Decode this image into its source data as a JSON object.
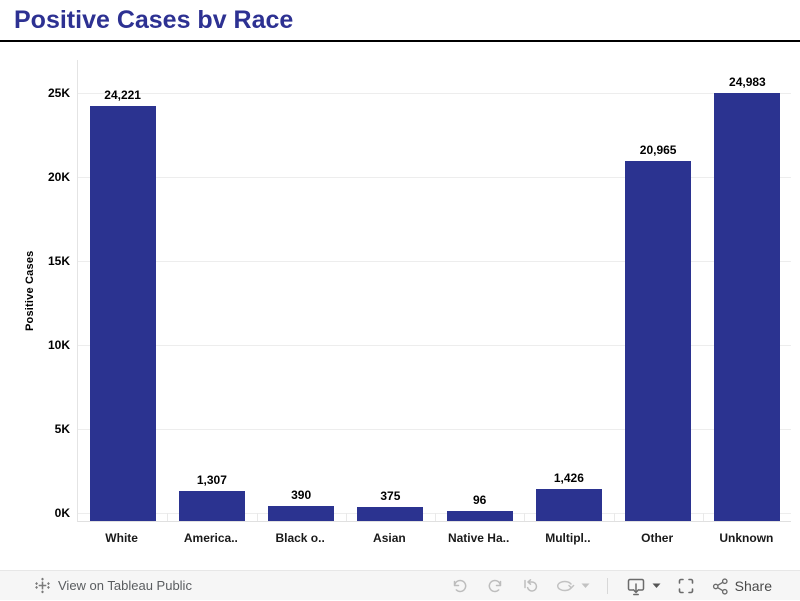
{
  "header": {
    "title": "Positive Cases bv Race"
  },
  "chart_data": {
    "type": "bar",
    "title": "Positive Cases bv Race",
    "categories": [
      "White",
      "America..",
      "Black o..",
      "Asian",
      "Native Ha..",
      "Multipl..",
      "Other",
      "Unknown"
    ],
    "values": [
      24221,
      1307,
      390,
      375,
      96,
      1426,
      20965,
      24983
    ],
    "value_labels": [
      "24,221",
      "1,307",
      "390",
      "375",
      "96",
      "1,426",
      "20,965",
      "24,983"
    ],
    "xlabel": "",
    "ylabel": "Positive Cases",
    "ylim": [
      0,
      25000
    ],
    "y_ticks": [
      "0K",
      "5K",
      "10K",
      "15K",
      "20K",
      "25K"
    ],
    "grid": "horizontal-light",
    "legend": "none",
    "bar_color": "#2b3390"
  },
  "colors": {
    "title": "#2d3192",
    "bar": "#2b3390",
    "title_rule": "#000000",
    "footer_bg": "#f6f6f6",
    "gridline": "#ededed",
    "disabled_icon": "#bdbdbd",
    "active_icon": "#6b6b6b"
  },
  "footer": {
    "view_label": "View on Tableau Public",
    "share_label": "Share",
    "icons": [
      "tableau-logo-icon",
      "undo-icon",
      "redo-icon",
      "replay-icon",
      "refresh-icon",
      "caret-down-icon",
      "download-icon",
      "caret-down-icon",
      "fullscreen-icon",
      "share-icon"
    ]
  }
}
